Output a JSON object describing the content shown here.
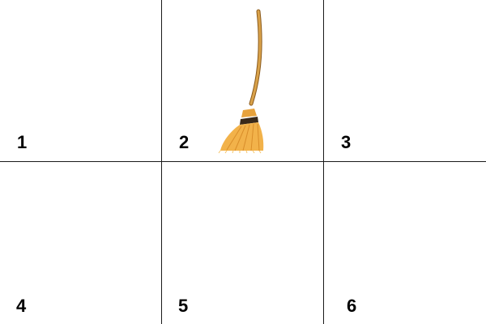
{
  "grid": {
    "cells": [
      {
        "number": "1",
        "item": ""
      },
      {
        "number": "2",
        "item": "broom-icon"
      },
      {
        "number": "3",
        "item": ""
      },
      {
        "number": "4",
        "item": ""
      },
      {
        "number": "5",
        "item": ""
      },
      {
        "number": "6",
        "item": ""
      }
    ]
  },
  "colors": {
    "broom_handle": "#d9a24a",
    "broom_handle_edge": "#8a5a1c",
    "broom_bristles": "#f2b24a",
    "broom_band": "#3a2a1a",
    "grid_lines": "#1a1a1a"
  }
}
